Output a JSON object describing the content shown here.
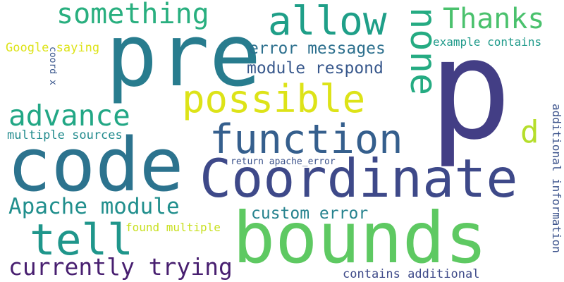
{
  "words": {
    "p": {
      "text": "p",
      "color": "#433e85"
    },
    "pre": {
      "text": "pre",
      "color": "#287c8e"
    },
    "code": {
      "text": "code",
      "color": "#2c738e"
    },
    "bounds": {
      "text": "bounds",
      "color": "#5ec962"
    },
    "coordinate": {
      "text": "Coordinate",
      "color": "#3e4989"
    },
    "function": {
      "text": "function",
      "color": "#355f8d"
    },
    "possible": {
      "text": "possible",
      "color": "#dde318"
    },
    "allow": {
      "text": "allow",
      "color": "#1f9f88"
    },
    "none": {
      "text": "none",
      "color": "#25ab82"
    },
    "something": {
      "text": "something",
      "color": "#29af7f"
    },
    "thanks": {
      "text": "Thanks",
      "color": "#4ac16d"
    },
    "advance": {
      "text": "advance",
      "color": "#22a785"
    },
    "tell": {
      "text": "tell",
      "color": "#1f968b"
    },
    "apache_module": {
      "text": "Apache module",
      "color": "#218f8d"
    },
    "currently_trying": {
      "text": "currently trying",
      "color": "#481f70"
    },
    "error_messages": {
      "text": "error messages",
      "color": "#2d708e"
    },
    "module_respond": {
      "text": "module respond",
      "color": "#38588c"
    },
    "d": {
      "text": "d",
      "color": "#b5de2b"
    },
    "custom_error": {
      "text": "custom error",
      "color": "#26828e"
    },
    "google_saying": {
      "text": "Google saying",
      "color": "#dde318"
    },
    "multiple_sources": {
      "text": "multiple sources",
      "color": "#228b8d"
    },
    "example_contains": {
      "text": "example contains",
      "color": "#1f9a8a"
    },
    "found_multiple": {
      "text": "found multiple",
      "color": "#c8e020"
    },
    "return_apache_error": {
      "text": "return apache_error",
      "color": "#3b528b"
    },
    "contains_additional": {
      "text": "contains additional",
      "color": "#3e4a89"
    },
    "additional_information": {
      "text": "additional information",
      "color": "#3b528b"
    },
    "coord_x": {
      "text": "coord x",
      "color": "#39568c"
    }
  }
}
